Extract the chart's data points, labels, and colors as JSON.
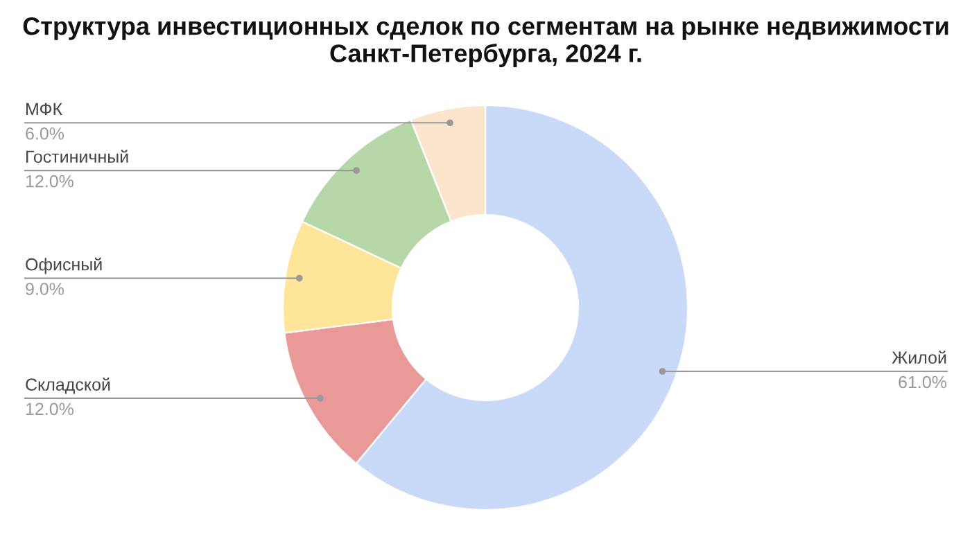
{
  "chart_data": {
    "type": "donut",
    "title": "Структура инвестиционных сделок по сегментам на рынке недвижимости\nСанкт-Петербурга, 2024 г.",
    "categories": [
      "Жилой",
      "Складской",
      "Офисный",
      "Гостиничный",
      "МФК"
    ],
    "values": [
      61,
      12,
      9,
      12,
      6
    ],
    "value_labels": [
      "61.0%",
      "12.0%",
      "9.0%",
      "12.0%",
      "6.0%"
    ],
    "colors": [
      "#c9daf8",
      "#ea9999",
      "#ffe599",
      "#b6d7a8",
      "#fce5cd"
    ],
    "legend": false
  }
}
